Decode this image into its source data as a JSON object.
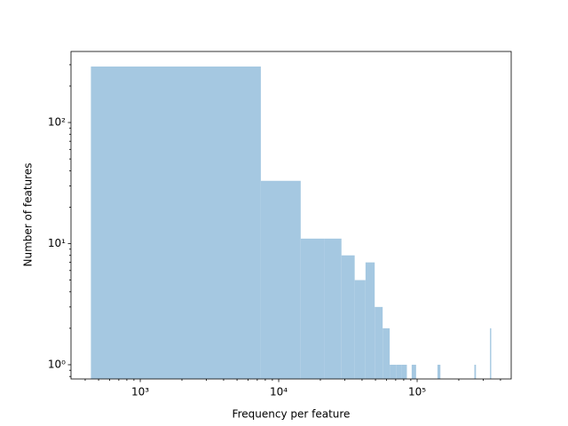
{
  "chart_data": {
    "type": "histogram",
    "xlabel": "Frequency per feature",
    "ylabel": "Number of features",
    "xscale": "log",
    "yscale": "log",
    "color": "#a5c8e1",
    "bins": [
      440,
      7430,
      14420,
      21410,
      28400,
      35390,
      42380,
      49370,
      56360,
      63350,
      70340,
      77330,
      84320,
      91310,
      98300,
      105290,
      112280,
      119270,
      126260,
      133250,
      140240,
      147230,
      154220,
      161210,
      168200,
      175190,
      182180,
      189170,
      196160,
      203150,
      210140,
      217130,
      224120,
      231110,
      238100,
      245090,
      252080,
      259070,
      266060,
      273050,
      280040,
      287030,
      294020,
      301010,
      308000,
      314990,
      321980,
      328970,
      335960,
      342950,
      349940
    ],
    "values": [
      290,
      33,
      11,
      11,
      8,
      5,
      7,
      3,
      2,
      1,
      1,
      1,
      0,
      1,
      0,
      0,
      0,
      0,
      0,
      0,
      1,
      0,
      0,
      0,
      0,
      0,
      0,
      0,
      0,
      0,
      0,
      0,
      0,
      0,
      0,
      0,
      0,
      1,
      0,
      0,
      0,
      0,
      0,
      0,
      0,
      0,
      0,
      0,
      2,
      0
    ],
    "xlim": [
      316,
      478000
    ],
    "ylim": [
      0.763,
      386
    ],
    "xticks": [
      {
        "value": 1000,
        "label": "10³"
      },
      {
        "value": 10000,
        "label": "10⁴"
      },
      {
        "value": 100000,
        "label": "10⁵"
      }
    ],
    "yticks": [
      {
        "value": 1,
        "label": "10⁰"
      },
      {
        "value": 10,
        "label": "10¹"
      },
      {
        "value": 100,
        "label": "10²"
      }
    ],
    "xminorticks": [
      400,
      500,
      600,
      700,
      800,
      900,
      2000,
      3000,
      4000,
      5000,
      6000,
      7000,
      8000,
      9000,
      20000,
      30000,
      40000,
      50000,
      60000,
      70000,
      80000,
      90000,
      200000,
      300000,
      400000
    ],
    "yminorticks": [
      0.8,
      0.9,
      2,
      3,
      4,
      5,
      6,
      7,
      8,
      9,
      20,
      30,
      40,
      50,
      60,
      70,
      80,
      90,
      200,
      300
    ]
  }
}
